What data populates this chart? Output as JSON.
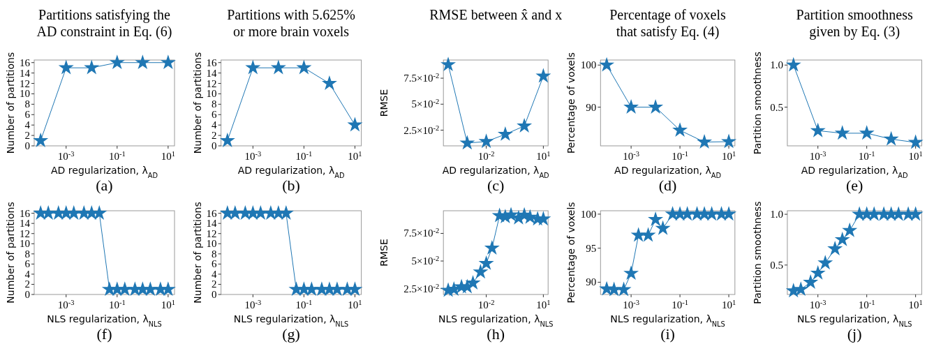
{
  "chart_data": [
    {
      "type": "line",
      "title": "Partitions satisfying the AD constraint in Eq. (6)",
      "xlabel": "AD regularization, λ$_{AD}$",
      "ylabel": "Number of partitions",
      "annotations": [
        "(a)"
      ],
      "log": "x",
      "marker": "star",
      "x": [
        0.0001,
        0.001,
        0.01,
        0.1,
        1,
        10
      ],
      "series": [
        {
          "color": "#1f77b4",
          "values": [
            1,
            15,
            15,
            16,
            16,
            16
          ]
        }
      ],
      "xlim": [
        5.6e-05,
        17.8
      ],
      "xticks": [
        {
          "value": 0.001,
          "label": "10$^{-3}$"
        },
        {
          "value": 0.1,
          "label": "10$^{-1}$"
        },
        {
          "value": 10,
          "label": "10$^{1}$"
        }
      ],
      "ylim": [
        0,
        16.5
      ],
      "yticks": [
        0,
        2,
        4,
        6,
        8,
        10,
        12,
        14,
        16
      ]
    },
    {
      "type": "line",
      "title": "Partitions with 5.625% or more brain voxels",
      "xlabel": "AD regularization, λ$_{AD}$",
      "ylabel": "Number of partitions",
      "annotations": [
        "(b)"
      ],
      "log": "x",
      "marker": "star",
      "x": [
        0.0001,
        0.001,
        0.01,
        0.1,
        1,
        10
      ],
      "series": [
        {
          "color": "#1f77b4",
          "values": [
            1,
            15,
            15,
            15,
            12,
            4
          ]
        }
      ],
      "xlim": [
        5.6e-05,
        17.8
      ],
      "xticks": [
        {
          "value": 0.001,
          "label": "10$^{-3}$"
        },
        {
          "value": 0.1,
          "label": "10$^{-1}$"
        },
        {
          "value": 10,
          "label": "10$^{1}$"
        }
      ],
      "ylim": [
        0,
        16.5
      ],
      "yticks": [
        0,
        2,
        4,
        6,
        8,
        10,
        12,
        14,
        16
      ]
    },
    {
      "type": "line",
      "title": "RMSE between x̂ and x",
      "xlabel": "AD regularization, λ$_{AD}$",
      "ylabel": "RMSE",
      "annotations": [
        "(c)"
      ],
      "log": "x",
      "marker": "star",
      "x": [
        0.0001,
        0.001,
        0.01,
        0.1,
        1,
        10
      ],
      "series": [
        {
          "color": "#1f77b4",
          "values": [
            0.088,
            0.0126,
            0.014,
            0.021,
            0.029,
            0.077
          ]
        }
      ],
      "xlim": [
        5.6e-05,
        17.8
      ],
      "xticks": [
        {
          "value": 0.01,
          "label": "10$^{-2}$"
        },
        {
          "value": 10,
          "label": "10$^{1}$"
        }
      ],
      "ylim": [
        0.0099,
        0.0925
      ],
      "yticks": [
        {
          "value": 0.025,
          "label": "2.5×10$^{-2}$"
        },
        {
          "value": 0.05,
          "label": "5×10$^{-2}$"
        },
        {
          "value": 0.075,
          "label": "7.5×10$^{-2}$"
        }
      ]
    },
    {
      "type": "line",
      "title": "Percentage of voxels that satisfy Eq. (4)",
      "xlabel": "AD regularization, λ$_{AD}$",
      "ylabel": "Percentage of voxels",
      "annotations": [
        "(d)"
      ],
      "log": "x",
      "marker": "star",
      "x": [
        0.0001,
        0.001,
        0.01,
        0.1,
        1,
        10
      ],
      "series": [
        {
          "color": "#1f77b4",
          "values": [
            100,
            90,
            90,
            84.5,
            81.7,
            81.8
          ]
        }
      ],
      "xlim": [
        5.6e-05,
        17.8
      ],
      "xticks": [
        {
          "value": 0.001,
          "label": "10$^{-3}$"
        },
        {
          "value": 0.1,
          "label": "10$^{-1}$"
        },
        {
          "value": 10,
          "label": "10$^{1}$"
        }
      ],
      "ylim": [
        80.8,
        101.2
      ],
      "yticks": [
        90,
        100
      ]
    },
    {
      "type": "line",
      "title": "Partition smoothness given by Eq. (3)",
      "xlabel": "AD regularization, λ$_{AD}$",
      "ylabel": "Partition smoothness",
      "annotations": [
        "(e)"
      ],
      "log": "x",
      "marker": "star",
      "x": [
        0.0001,
        0.001,
        0.01,
        0.1,
        1,
        10
      ],
      "series": [
        {
          "color": "#1f77b4",
          "values": [
            1.0,
            0.22,
            0.19,
            0.19,
            0.12,
            0.08
          ]
        }
      ],
      "xlim": [
        5.6e-05,
        17.8
      ],
      "xticks": [
        {
          "value": 0.001,
          "label": "10$^{-3}$"
        },
        {
          "value": 0.1,
          "label": "10$^{-1}$"
        },
        {
          "value": 10,
          "label": "10$^{1}$"
        }
      ],
      "ylim": [
        0.04,
        1.06
      ],
      "yticks": [
        {
          "value": 0.5,
          "label": "0.5"
        },
        {
          "value": 1,
          "label": "1.0"
        }
      ]
    },
    {
      "type": "line",
      "xlabel": "NLS regularization, λ$_{NLS}$",
      "ylabel": "Number of partitions",
      "annotations": [
        "(f)"
      ],
      "log": "x",
      "marker": "star",
      "x": [
        0.0001,
        0.0002,
        0.0005,
        0.001,
        0.002,
        0.005,
        0.01,
        0.02,
        0.05,
        0.1,
        0.2,
        0.5,
        1,
        2,
        5,
        10
      ],
      "series": [
        {
          "color": "#1f77b4",
          "values": [
            16,
            16,
            16,
            16,
            16,
            16,
            16,
            16,
            1,
            1,
            1,
            1,
            1,
            1,
            1,
            1
          ]
        }
      ],
      "xlim": [
        5.6e-05,
        17.8
      ],
      "xticks": [
        {
          "value": 0.001,
          "label": "10$^{-3}$"
        },
        {
          "value": 0.1,
          "label": "10$^{-1}$"
        },
        {
          "value": 10,
          "label": "10$^{1}$"
        }
      ],
      "ylim": [
        0,
        16.5
      ],
      "yticks": [
        0,
        2,
        4,
        6,
        8,
        10,
        12,
        14,
        16
      ]
    },
    {
      "type": "line",
      "xlabel": "NLS regularization, λ$_{NLS}$",
      "ylabel": "Number of partitions",
      "annotations": [
        "(g)"
      ],
      "log": "x",
      "marker": "star",
      "x": [
        0.0001,
        0.0002,
        0.0005,
        0.001,
        0.002,
        0.005,
        0.01,
        0.02,
        0.05,
        0.1,
        0.2,
        0.5,
        1,
        2,
        5,
        10
      ],
      "series": [
        {
          "color": "#1f77b4",
          "values": [
            16,
            16,
            16,
            16,
            16,
            16,
            16,
            16,
            1,
            1,
            1,
            1,
            1,
            1,
            1,
            1
          ]
        }
      ],
      "xlim": [
        5.6e-05,
        17.8
      ],
      "xticks": [
        {
          "value": 0.001,
          "label": "10$^{-3}$"
        },
        {
          "value": 0.1,
          "label": "10$^{-1}$"
        },
        {
          "value": 10,
          "label": "10$^{1}$"
        }
      ],
      "ylim": [
        0,
        16.5
      ],
      "yticks": [
        0,
        2,
        4,
        6,
        8,
        10,
        12,
        14,
        16
      ]
    },
    {
      "type": "line",
      "xlabel": "NLS regularization, λ$_{NLS}$",
      "ylabel": "RMSE",
      "annotations": [
        "(h)"
      ],
      "log": "x",
      "marker": "star",
      "x": [
        0.0001,
        0.0002,
        0.0005,
        0.001,
        0.002,
        0.005,
        0.01,
        0.02,
        0.05,
        0.1,
        0.2,
        0.5,
        1,
        2,
        5,
        10
      ],
      "series": [
        {
          "color": "#1f77b4",
          "values": [
            0.0234,
            0.0244,
            0.0266,
            0.0266,
            0.03,
            0.04,
            0.0478,
            0.0616,
            0.091,
            0.09,
            0.0917,
            0.089,
            0.0915,
            0.0896,
            0.088,
            0.088
          ]
        }
      ],
      "xlim": [
        5.6e-05,
        17.8
      ],
      "xticks": [
        {
          "value": 0.01,
          "label": "10$^{-2}$"
        },
        {
          "value": 10,
          "label": "10$^{1}$"
        }
      ],
      "ylim": [
        0.0197,
        0.0955
      ],
      "yticks": [
        {
          "value": 0.025,
          "label": "2.5×10$^{-2}$"
        },
        {
          "value": 0.05,
          "label": "5×10$^{-2}$"
        },
        {
          "value": 0.075,
          "label": "7.5×10$^{-2}$"
        }
      ]
    },
    {
      "type": "line",
      "xlabel": "NLS regularization, λ$_{NLS}$",
      "ylabel": "Percentage of voxels",
      "annotations": [
        "(i)"
      ],
      "log": "x",
      "marker": "star",
      "x": [
        0.0001,
        0.0002,
        0.0005,
        0.001,
        0.002,
        0.005,
        0.01,
        0.02,
        0.05,
        0.1,
        0.2,
        0.5,
        1,
        2,
        5,
        10
      ],
      "series": [
        {
          "color": "#1f77b4",
          "values": [
            89.0,
            88.9,
            88.9,
            91.3,
            96.9,
            96.9,
            99.2,
            97.9,
            100,
            100,
            100,
            100,
            100,
            100,
            100,
            100
          ]
        }
      ],
      "xlim": [
        5.6e-05,
        17.8
      ],
      "xticks": [
        {
          "value": 0.001,
          "label": "10$^{-3}$"
        },
        {
          "value": 0.1,
          "label": "10$^{-1}$"
        },
        {
          "value": 10,
          "label": "10$^{1}$"
        }
      ],
      "ylim": [
        88.2,
        100.5
      ],
      "yticks": [
        90,
        95,
        100
      ]
    },
    {
      "type": "line",
      "xlabel": "NLS regularization, λ$_{NLS}$",
      "ylabel": "Partition smoothness",
      "annotations": [
        "(j)"
      ],
      "log": "x",
      "marker": "star",
      "x": [
        0.0001,
        0.0002,
        0.0005,
        0.001,
        0.002,
        0.005,
        0.01,
        0.02,
        0.05,
        0.1,
        0.2,
        0.5,
        1,
        2,
        5,
        10
      ],
      "series": [
        {
          "color": "#1f77b4",
          "values": [
            0.245,
            0.26,
            0.33,
            0.42,
            0.52,
            0.66,
            0.75,
            0.84,
            1,
            1,
            1,
            1,
            1,
            1,
            1,
            1
          ]
        }
      ],
      "xlim": [
        5.6e-05,
        17.8
      ],
      "xticks": [
        {
          "value": 0.001,
          "label": "10$^{-3}$"
        },
        {
          "value": 0.1,
          "label": "10$^{-1}$"
        },
        {
          "value": 10,
          "label": "10$^{1}$"
        }
      ],
      "ylim": [
        0.21,
        1.035
      ],
      "yticks": [
        {
          "value": 0.5,
          "label": "0.5"
        },
        {
          "value": 1,
          "label": "1.0"
        }
      ]
    }
  ]
}
